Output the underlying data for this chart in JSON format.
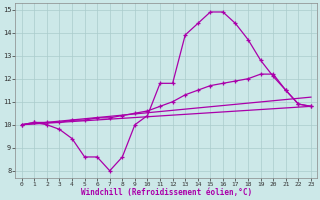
{
  "xlabel": "Windchill (Refroidissement éolien,°C)",
  "background_color": "#cce8e8",
  "grid_color": "#aacccc",
  "line_color": "#aa00aa",
  "xlim": [
    -0.5,
    23.5
  ],
  "ylim": [
    7.7,
    15.3
  ],
  "yticks": [
    8,
    9,
    10,
    11,
    12,
    13,
    14,
    15
  ],
  "xticks": [
    0,
    1,
    2,
    3,
    4,
    5,
    6,
    7,
    8,
    9,
    10,
    11,
    12,
    13,
    14,
    15,
    16,
    17,
    18,
    19,
    20,
    21,
    22,
    23
  ],
  "series1_x": [
    0,
    1,
    2,
    3,
    4,
    5,
    6,
    7,
    8,
    9,
    10,
    11,
    12,
    13,
    14,
    15,
    16,
    17,
    18,
    19,
    20,
    21,
    22,
    23
  ],
  "series1_y": [
    10.0,
    10.1,
    10.0,
    9.8,
    9.4,
    8.6,
    8.6,
    8.0,
    8.6,
    10.0,
    10.4,
    11.8,
    11.8,
    13.9,
    14.4,
    14.9,
    14.9,
    14.4,
    13.7,
    12.8,
    12.1,
    11.5,
    10.9,
    10.8
  ],
  "series2_x": [
    0,
    1,
    2,
    3,
    4,
    5,
    6,
    7,
    8,
    9,
    10,
    11,
    12,
    13,
    14,
    15,
    16,
    17,
    18,
    19,
    20,
    21,
    22,
    23
  ],
  "series2_y": [
    10.0,
    10.1,
    10.1,
    10.1,
    10.2,
    10.2,
    10.3,
    10.3,
    10.4,
    10.5,
    10.6,
    10.8,
    11.0,
    11.3,
    11.5,
    11.7,
    11.8,
    11.9,
    12.0,
    12.2,
    12.2,
    11.5,
    10.9,
    10.8
  ],
  "series3_x": [
    0,
    23
  ],
  "series3_y": [
    10.0,
    10.8
  ],
  "series4_x": [
    0,
    23
  ],
  "series4_y": [
    10.0,
    11.2
  ]
}
